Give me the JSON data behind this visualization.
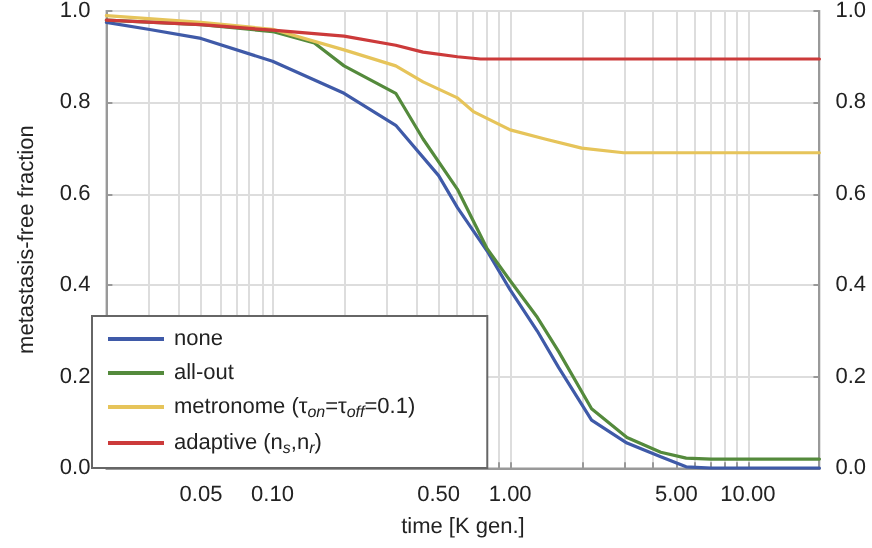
{
  "chart_data": {
    "type": "line",
    "xlabel": "time [K gen.]",
    "ylabel": "metastasis-free fraction",
    "log": "x",
    "grid": true,
    "legend": "bottom left",
    "marker": "none",
    "line_style": "solid",
    "xlim": [
      0.02,
      20
    ],
    "xticks": [
      {
        "value": 0.02,
        "label": null
      },
      {
        "value": 0.03,
        "label": null
      },
      {
        "value": 0.04,
        "label": null
      },
      {
        "value": 0.05,
        "label": "0.05"
      },
      {
        "value": 0.06,
        "label": null
      },
      {
        "value": 0.07,
        "label": null
      },
      {
        "value": 0.08,
        "label": null
      },
      {
        "value": 0.09,
        "label": null
      },
      {
        "value": 0.1,
        "label": "0.10"
      },
      {
        "value": 0.2,
        "label": null
      },
      {
        "value": 0.3,
        "label": null
      },
      {
        "value": 0.4,
        "label": null
      },
      {
        "value": 0.5,
        "label": "0.50"
      },
      {
        "value": 0.6,
        "label": null
      },
      {
        "value": 0.7,
        "label": null
      },
      {
        "value": 0.8,
        "label": null
      },
      {
        "value": 0.9,
        "label": null
      },
      {
        "value": 1,
        "label": "1.00"
      },
      {
        "value": 2,
        "label": null
      },
      {
        "value": 3,
        "label": null
      },
      {
        "value": 4,
        "label": null
      },
      {
        "value": 5,
        "label": "5.00"
      },
      {
        "value": 6,
        "label": null
      },
      {
        "value": 7,
        "label": null
      },
      {
        "value": 8,
        "label": null
      },
      {
        "value": 9,
        "label": null
      },
      {
        "value": 10,
        "label": "10.00"
      },
      {
        "value": 20,
        "label": null
      }
    ],
    "ylim": [
      0,
      1
    ],
    "yticks": [
      {
        "value": 0,
        "label": "0.0"
      },
      {
        "value": 0.2,
        "label": "0.2"
      },
      {
        "value": 0.4,
        "label": "0.4"
      },
      {
        "value": 0.6,
        "label": "0.6"
      },
      {
        "value": 0.8,
        "label": "0.8"
      },
      {
        "value": 1,
        "label": "1.0"
      }
    ],
    "y2lim": [
      0,
      1
    ],
    "y2ticks": [
      {
        "value": 0,
        "label": "0.0"
      },
      {
        "value": 0.2,
        "label": "0.2"
      },
      {
        "value": 0.4,
        "label": "0.4"
      },
      {
        "value": 0.6,
        "label": "0.6"
      },
      {
        "value": 0.8,
        "label": "0.8"
      },
      {
        "value": 1,
        "label": "1.0"
      }
    ],
    "series": [
      {
        "name": "none",
        "color": "#3f5aa8",
        "x": [
          0.02,
          0.03,
          0.05,
          0.1,
          0.2,
          0.33,
          0.5,
          0.6,
          0.8,
          1.0,
          1.3,
          1.6,
          2.2,
          3.1,
          4.3,
          5.5,
          7,
          20
        ],
        "values": [
          0.975,
          0.96,
          0.94,
          0.89,
          0.82,
          0.75,
          0.64,
          0.57,
          0.475,
          0.39,
          0.3,
          0.22,
          0.105,
          0.055,
          0.025,
          0.003,
          0,
          0
        ]
      },
      {
        "name": "all-out",
        "color": "#548a3c",
        "x": [
          0.02,
          0.05,
          0.1,
          0.15,
          0.2,
          0.33,
          0.43,
          0.6,
          0.8,
          1.0,
          1.3,
          1.6,
          2.2,
          3.1,
          4.3,
          5.5,
          7,
          20
        ],
        "values": [
          0.98,
          0.97,
          0.955,
          0.93,
          0.88,
          0.82,
          0.72,
          0.61,
          0.48,
          0.41,
          0.33,
          0.255,
          0.13,
          0.067,
          0.035,
          0.022,
          0.02,
          0.02
        ]
      },
      {
        "name": "metronome (τ$_{on}$=τ$_{off}$=0.1)",
        "color": "#e6c45a",
        "x": [
          0.02,
          0.05,
          0.1,
          0.2,
          0.33,
          0.43,
          0.6,
          0.7,
          1.0,
          1.4,
          2.0,
          3.0,
          20
        ],
        "values": [
          0.99,
          0.975,
          0.96,
          0.915,
          0.88,
          0.845,
          0.81,
          0.78,
          0.74,
          0.72,
          0.7,
          0.69,
          0.69
        ]
      },
      {
        "name": "adaptive (n$_{s}$,n$_{r}$)",
        "color": "#cc3a3a",
        "x": [
          0.02,
          0.05,
          0.1,
          0.2,
          0.33,
          0.43,
          0.6,
          0.75,
          1.0,
          20
        ],
        "values": [
          0.98,
          0.97,
          0.958,
          0.945,
          0.925,
          0.91,
          0.9,
          0.895,
          0.895,
          0.895
        ]
      }
    ]
  }
}
